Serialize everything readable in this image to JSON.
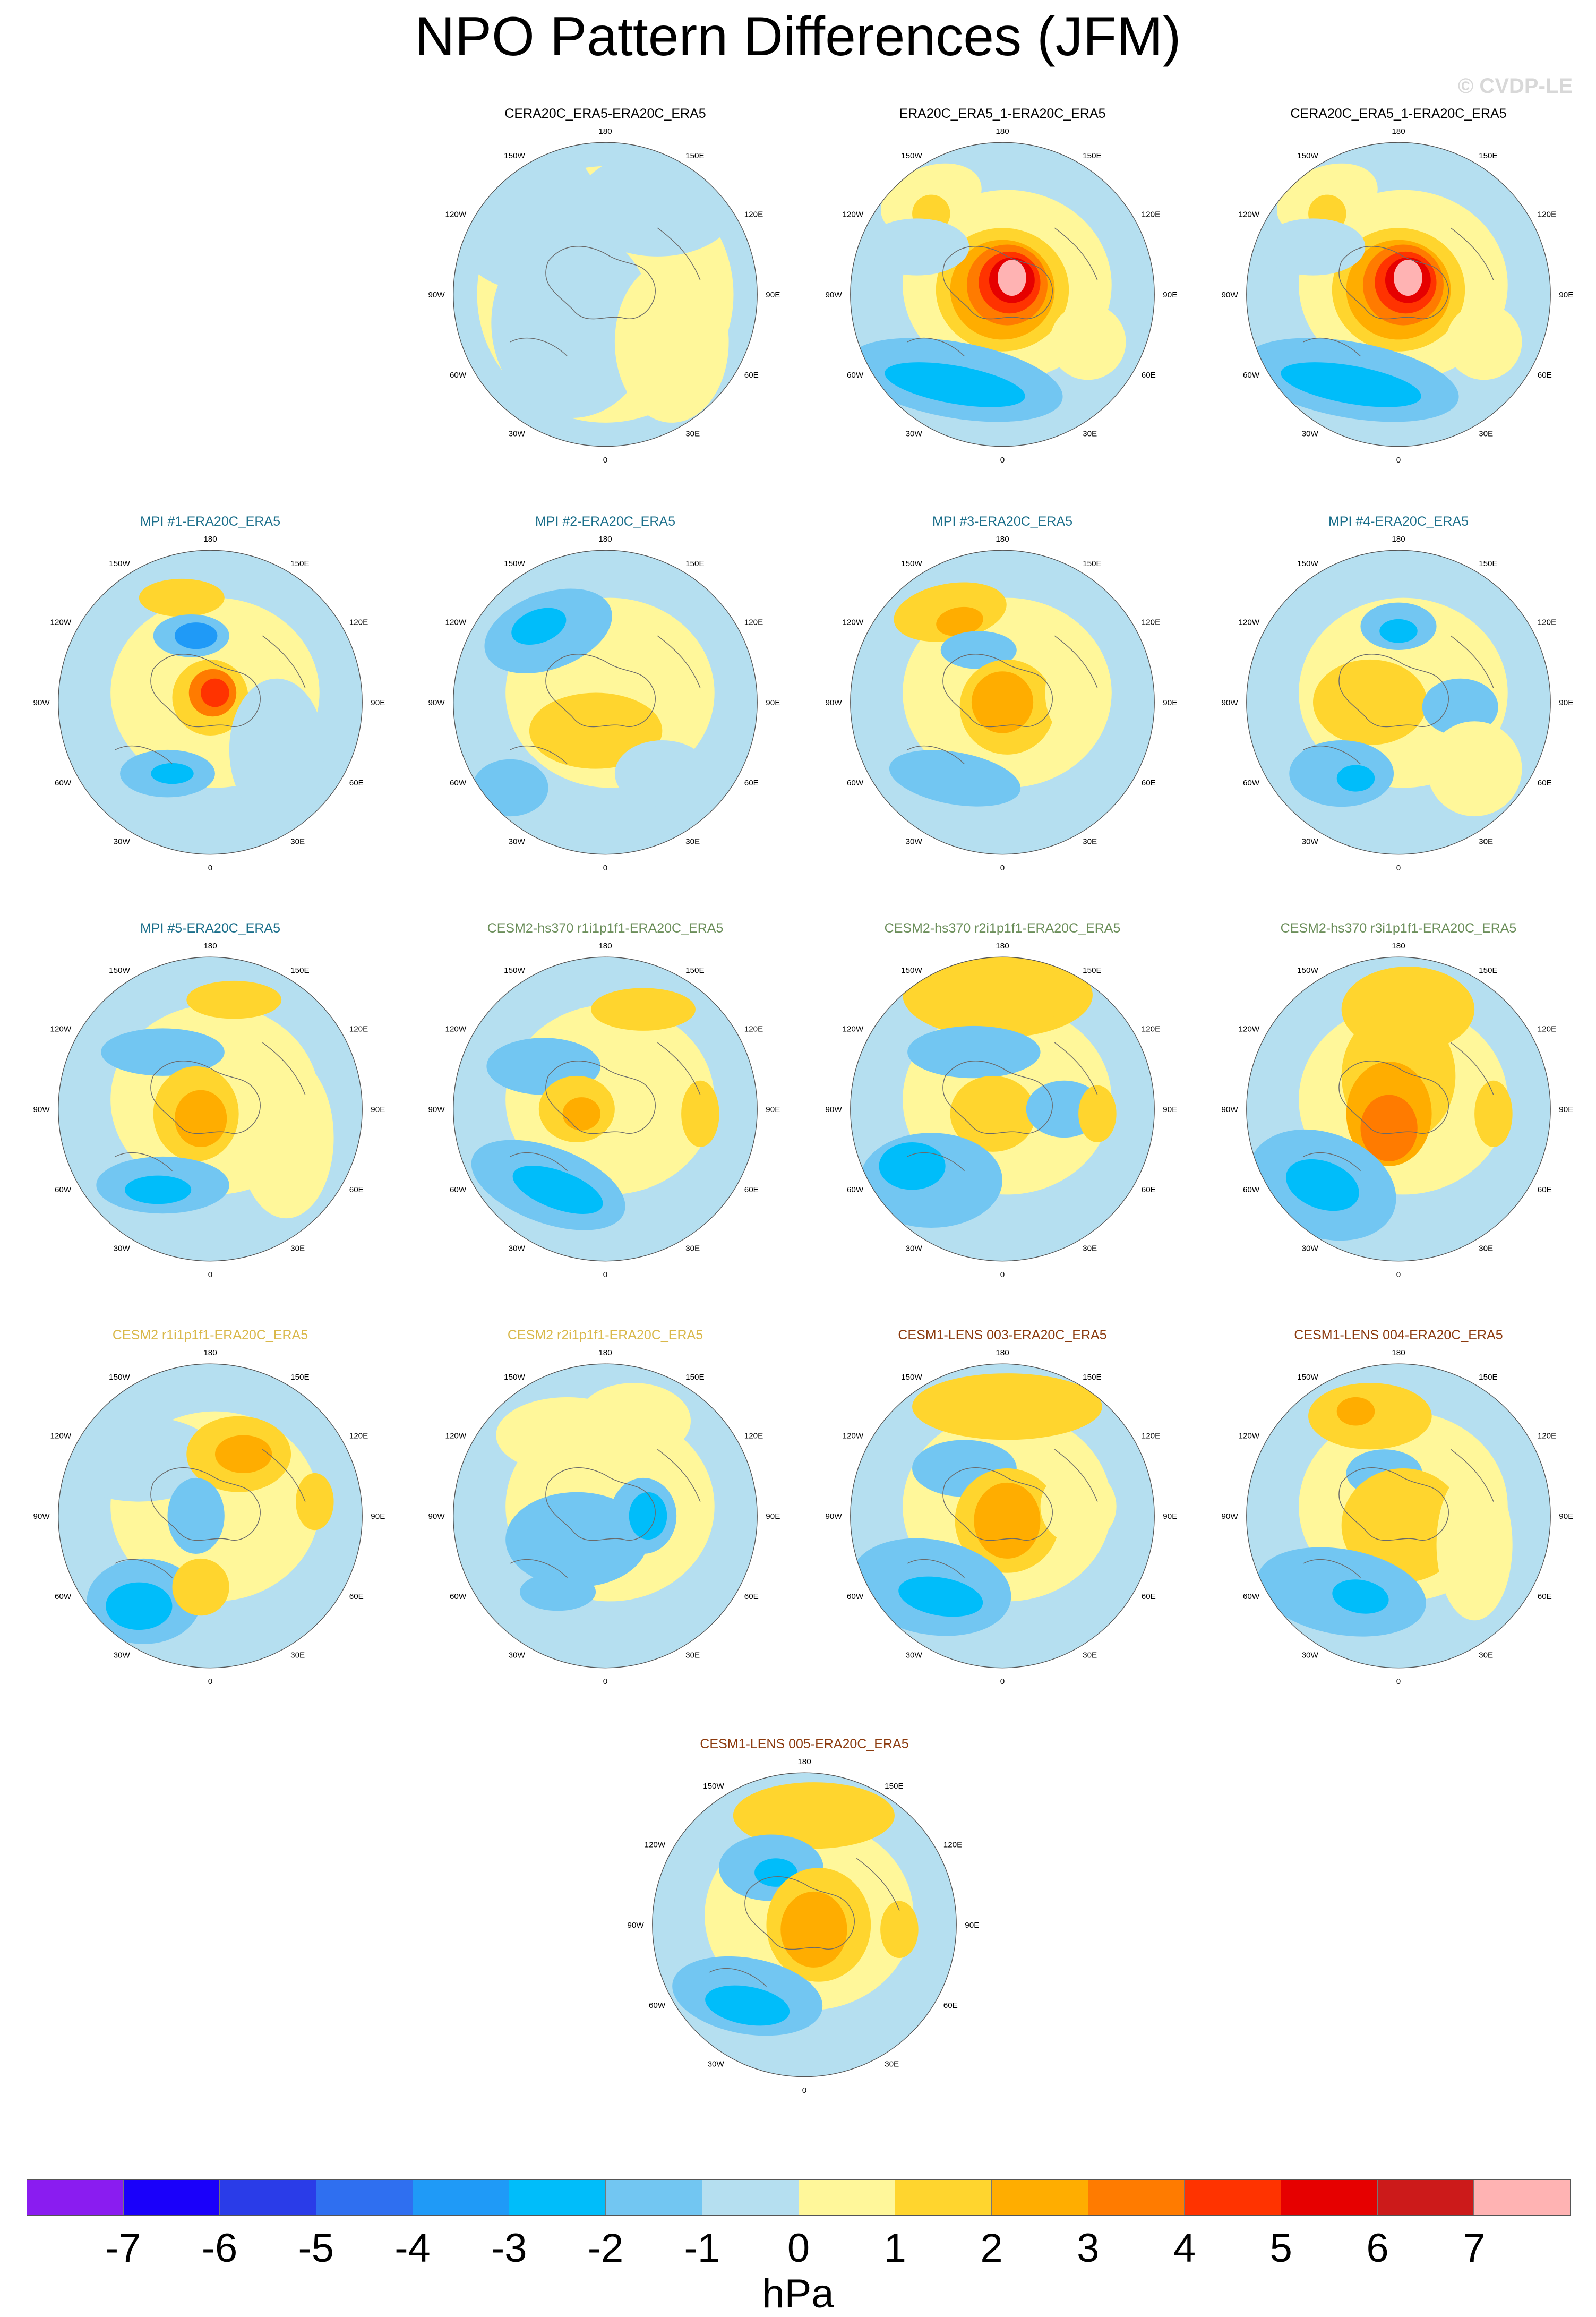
{
  "title": "NPO Pattern Differences (JFM)",
  "credit": "© CVDP-LE",
  "units": "hPa",
  "map_labels": {
    "lon_180": "180",
    "lon_150w": "150W",
    "lon_150e": "150E",
    "lon_120w": "120W",
    "lon_120e": "120E",
    "lon_90w": "90W",
    "lon_90e": "90E",
    "lon_60w": "60W",
    "lon_60e": "60E",
    "lon_30w": "30W",
    "lon_30e": "30E",
    "lon_0": "0"
  },
  "colorbar": {
    "colors": [
      "#8a1cf0",
      "#1a00fa",
      "#2a3ce8",
      "#2f6ff0",
      "#1f9af7",
      "#00bdfa",
      "#72c6f2",
      "#b5dff0",
      "#fff79a",
      "#ffd52e",
      "#ffad00",
      "#ff7b00",
      "#ff3300",
      "#e60000",
      "#cc1a1a",
      "#ffb3b3"
    ],
    "ticks": [
      "-7",
      "-6",
      "-5",
      "-4",
      "-3",
      "-2",
      "-1",
      "0",
      "1",
      "2",
      "3",
      "4",
      "5",
      "6",
      "7"
    ]
  },
  "panels": [
    {
      "title": "CERA20C_ERA5-ERA20C_ERA5",
      "title_color": "#000000",
      "pattern": "flat"
    },
    {
      "title": "ERA20C_ERA5_1-ERA20C_ERA5",
      "title_color": "#000000",
      "pattern": "strong"
    },
    {
      "title": "CERA20C_ERA5_1-ERA20C_ERA5",
      "title_color": "#000000",
      "pattern": "strong"
    },
    {
      "title": "MPI #1-ERA20C_ERA5",
      "title_color": "#1a6e8a",
      "pattern": "mpi1"
    },
    {
      "title": "MPI #2-ERA20C_ERA5",
      "title_color": "#1a6e8a",
      "pattern": "mpi2"
    },
    {
      "title": "MPI #3-ERA20C_ERA5",
      "title_color": "#1a6e8a",
      "pattern": "mpi3"
    },
    {
      "title": "MPI #4-ERA20C_ERA5",
      "title_color": "#1a6e8a",
      "pattern": "mpi4"
    },
    {
      "title": "MPI #5-ERA20C_ERA5",
      "title_color": "#1a6e8a",
      "pattern": "mpi5"
    },
    {
      "title": "CESM2-hs370 r1i1p1f1-ERA20C_ERA5",
      "title_color": "#6b8e5a",
      "pattern": "hs1"
    },
    {
      "title": "CESM2-hs370 r2i1p1f1-ERA20C_ERA5",
      "title_color": "#6b8e5a",
      "pattern": "hs2"
    },
    {
      "title": "CESM2-hs370 r3i1p1f1-ERA20C_ERA5",
      "title_color": "#6b8e5a",
      "pattern": "hs3"
    },
    {
      "title": "CESM2 r1i1p1f1-ERA20C_ERA5",
      "title_color": "#d9b84a",
      "pattern": "c1"
    },
    {
      "title": "CESM2 r2i1p1f1-ERA20C_ERA5",
      "title_color": "#d9b84a",
      "pattern": "c2"
    },
    {
      "title": "CESM1-LENS 003-ERA20C_ERA5",
      "title_color": "#8b3a0e",
      "pattern": "l3"
    },
    {
      "title": "CESM1-LENS 004-ERA20C_ERA5",
      "title_color": "#8b3a0e",
      "pattern": "l4"
    },
    {
      "title": "CESM1-LENS 005-ERA20C_ERA5",
      "title_color": "#8b3a0e",
      "pattern": "l5"
    }
  ]
}
